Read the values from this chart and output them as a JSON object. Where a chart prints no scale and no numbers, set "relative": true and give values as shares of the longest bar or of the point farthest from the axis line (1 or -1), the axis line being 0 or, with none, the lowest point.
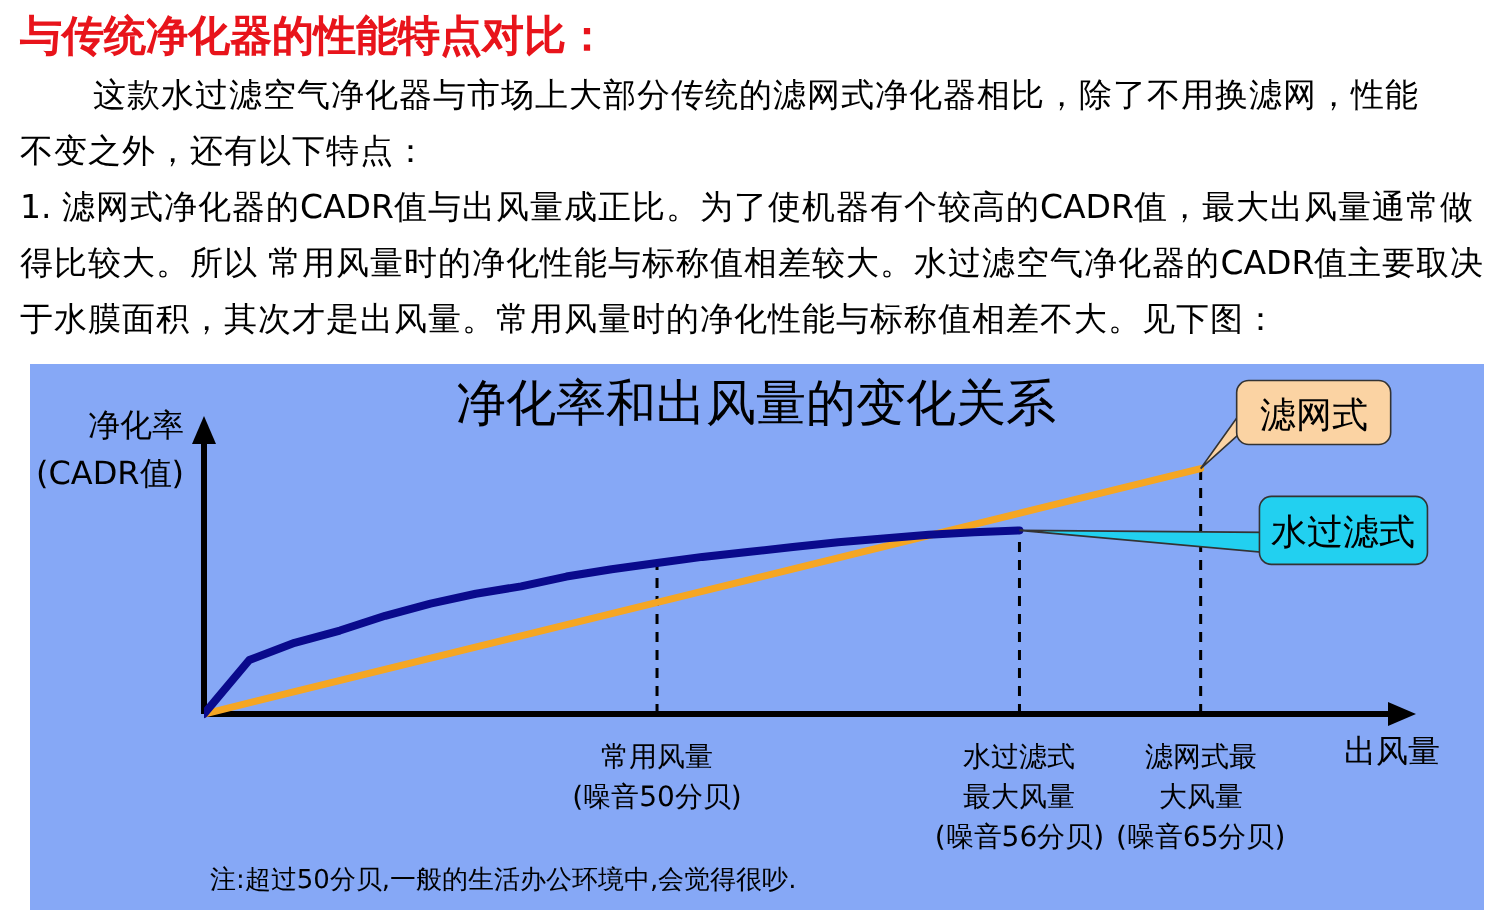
{
  "chart_data": {
    "type": "line",
    "title": "与传统净化器的性能特点对比：",
    "subtitle": "净化率和出风量的变化关系",
    "annotations": [
      "这款水过滤空气净化器与市场上大部分传统的滤网式净化器相比，除了不用换滤网，性能不变之外，还有以下特点：",
      "1. 滤网式净化器的CADR值与出风量成正比。为了使机器有个较高的CADR值，最大出风量通常做得比较大。所以 常用风量时的净化性能与标称值相差较大。水过滤空气净化器的CADR值主要取决于水膜面积，其次才是出风量。常用风量时的净化性能与标称值相差不大。见下图：",
      "注:超过50分贝,一般的生活办公环境中,会觉得很吵."
    ],
    "xlabel": "出风量",
    "ylabel": "净化率\n(CADR值)",
    "relative": true,
    "legend": false,
    "grid": false,
    "marker": "none",
    "line_style": "solid",
    "categories": [
      null,
      null,
      null,
      null,
      null,
      null,
      null,
      null,
      null,
      null,
      "常用风量(噪音50分贝)",
      null,
      null,
      null,
      null,
      null,
      null,
      null,
      "水过滤式最大风量(噪音56分贝)",
      null,
      null,
      null,
      "滤网式最大风量(噪音65分贝)"
    ],
    "series": [
      {
        "name": "滤网式",
        "color": "#f5a623",
        "values": [
          0,
          null,
          null,
          null,
          null,
          null,
          null,
          null,
          null,
          null,
          null,
          null,
          null,
          null,
          null,
          null,
          null,
          null,
          null,
          null,
          null,
          null,
          1
        ]
      },
      {
        "name": "水过滤式",
        "color": "#0a0a8c",
        "values": [
          0,
          0.22,
          0.29,
          0.34,
          0.4,
          0.45,
          0.49,
          0.52,
          0.56,
          0.59,
          0.615,
          0.64,
          0.66,
          0.68,
          0.7,
          0.715,
          0.73,
          0.74,
          0.748,
          null,
          null,
          null,
          null
        ]
      }
    ],
    "ref_lines": [
      {
        "axis": "x",
        "value": "常用风量(噪音50分贝)",
        "line_style": "dashed",
        "color": "#000000"
      },
      {
        "axis": "x",
        "value": "水过滤式最大风量(噪音56分贝)",
        "line_style": "dashed",
        "color": "#000000"
      },
      {
        "axis": "x",
        "value": "滤网式最大风量(噪音65分贝)",
        "line_style": "dashed",
        "color": "#000000"
      }
    ]
  }
}
